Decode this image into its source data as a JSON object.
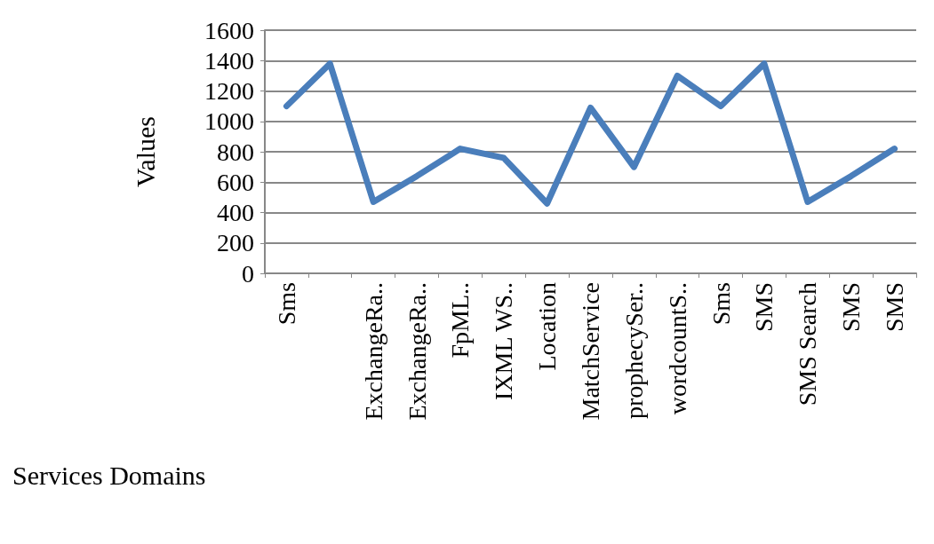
{
  "chart_data": {
    "type": "line",
    "xlabel": "Services Domains",
    "ylabel": "Values",
    "categories": [
      "Sms",
      null,
      "ExchangeRa..",
      "ExchangeRa..",
      "FpML..",
      "IXML WS..",
      "Location",
      "MatchService",
      "prophecySer..",
      "wordcountS..",
      "Sms",
      "SMS",
      "SMS Search",
      "SMS",
      "SMS"
    ],
    "series": [
      {
        "color": "#4a7ebb",
        "values": [
          1100,
          1380,
          470,
          640,
          820,
          760,
          460,
          1090,
          700,
          1300,
          1100,
          1380,
          470,
          640,
          820
        ]
      }
    ],
    "ylim": [
      0,
      1600
    ],
    "yticks": [
      0,
      200,
      400,
      600,
      800,
      1000,
      1200,
      1400,
      1600
    ],
    "grid": "y",
    "marker": "none",
    "line_style": "solid"
  }
}
